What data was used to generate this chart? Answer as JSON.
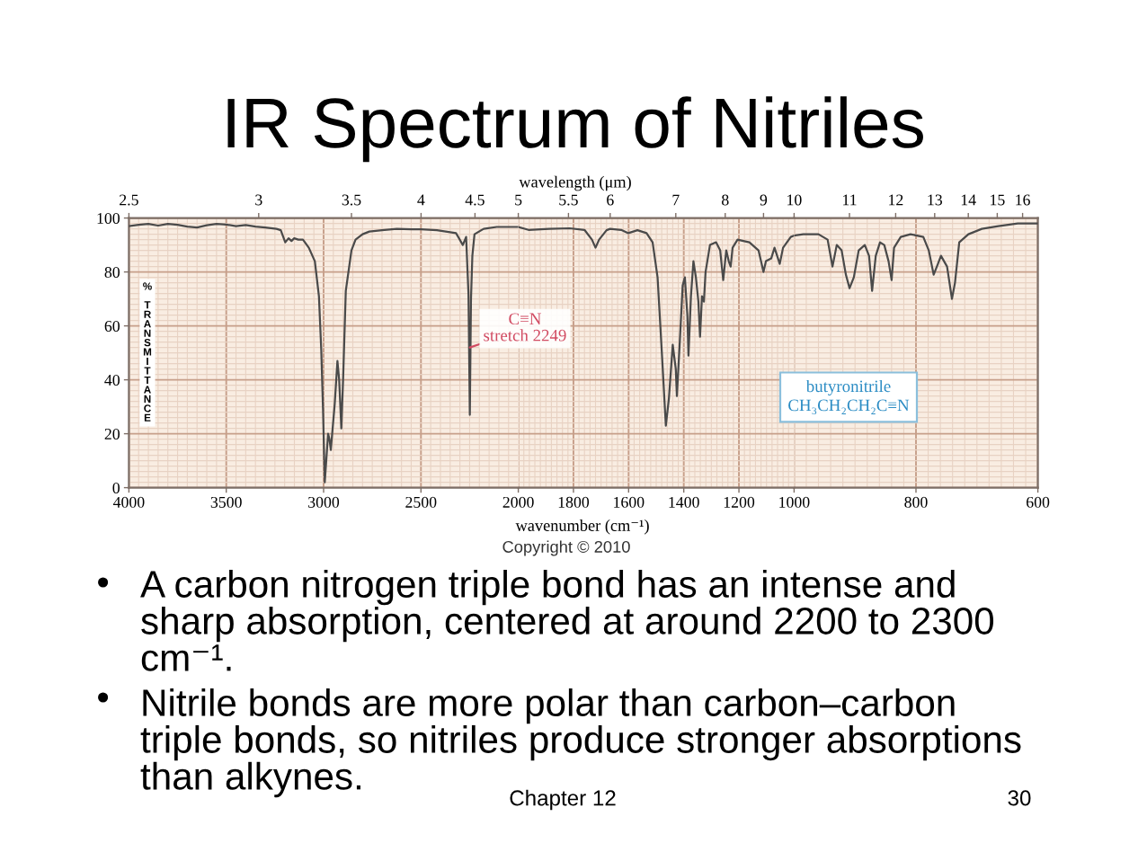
{
  "chart_data": [
    {
      "type": "line",
      "title": "IR Spectrum of Nitriles",
      "ylabel": "% TRANSMITTANCE",
      "x": [
        4000,
        3950,
        3900,
        3850,
        3800,
        3750,
        3700,
        3650,
        3600,
        3550,
        3500,
        3450,
        3400,
        3350,
        3300,
        3242,
        3220,
        3197,
        3180,
        3165,
        3151,
        3130,
        3106,
        3076,
        3045,
        3024,
        3012,
        3003,
        2994,
        2977,
        2970,
        2963,
        2943,
        2929,
        2920,
        2909,
        2900,
        2886,
        2857,
        2836,
        2800,
        2765,
        2700,
        2624,
        2550,
        2500,
        2418,
        2320,
        2285,
        2268,
        2256,
        2249,
        2243,
        2236,
        2225,
        2178,
        2111,
        2050,
        2000
      ],
      "series": [
        {
          "color": "#4a4a4a",
          "values": [
            97,
            97.5,
            97.8,
            97.2,
            97.8,
            97.5,
            96.8,
            96.5,
            97.3,
            97.8,
            97.6,
            97,
            97.4,
            96.8,
            96.5,
            96,
            95.5,
            91,
            92.5,
            91.5,
            92.5,
            92,
            92,
            89,
            84,
            71,
            51,
            29,
            2,
            20,
            18,
            14,
            31,
            47,
            40,
            22,
            40,
            73,
            88,
            92,
            94,
            95,
            95.5,
            96,
            95.8,
            95.8,
            95.5,
            94.4,
            90,
            93,
            72,
            27,
            70,
            86,
            94,
            96,
            96.7,
            96.7,
            96.7
          ]
        }
      ],
      "xlim": [
        4000,
        2000
      ],
      "xticks": [
        4000,
        3500,
        3000,
        2500
      ],
      "ylim": [
        0,
        100
      ],
      "yticks": [
        0,
        20,
        40,
        60,
        80,
        100
      ],
      "grid": true,
      "annotations": [
        "2.5",
        "3",
        "3.5",
        "4",
        "4.5",
        {
          "text": "C≡N\nstretch 2249",
          "x": 2249,
          "y": 52
        },
        "Copyright © 2010",
        "A carbon nitrogen triple bond has an intense and\nsharp absorption, centered at around 2200 to 2300\ncm⁻¹.",
        "Nitrile bonds are more polar than carbon–carbon\ntriple bonds, so nitriles produce stronger absorptions\nthan alkynes.",
        "Chapter 12",
        "30"
      ]
    },
    {
      "type": "line",
      "xlabel": "wavenumber (cm⁻¹)",
      "x": [
        2000,
        1963,
        1888,
        1814,
        1760,
        1733,
        1720,
        1707,
        1680,
        1667,
        1627,
        1601,
        1568,
        1535,
        1513,
        1495,
        1480,
        1465,
        1454,
        1440,
        1429,
        1425,
        1414,
        1404,
        1396,
        1387,
        1383,
        1374,
        1365,
        1356,
        1347,
        1341,
        1334,
        1327,
        1321,
        1305,
        1283,
        1268,
        1257,
        1246,
        1237,
        1230,
        1223,
        1205,
        1184,
        1162,
        1129,
        1111,
        1102,
        1083,
        1071,
        1052,
        1040,
        1012,
        1000
      ],
      "series": [
        {
          "color": "#4a4a4a",
          "values": [
            96.7,
            95.6,
            96,
            96.2,
            95.6,
            92,
            89,
            92,
            95.5,
            96,
            95.6,
            94.4,
            95.5,
            94.4,
            91,
            78,
            51,
            23,
            33,
            53,
            44,
            34,
            55,
            75,
            78,
            64,
            49,
            71,
            84,
            78,
            69,
            56,
            71,
            69,
            80,
            90,
            91,
            88,
            77,
            88,
            84,
            82,
            89,
            92,
            91.5,
            91,
            88,
            80,
            84,
            85,
            89,
            83,
            89,
            93,
            93.5
          ]
        }
      ],
      "xlim": [
        2000,
        1000
      ],
      "xticks": [
        2000,
        1800,
        1600,
        1400,
        1200
      ],
      "ylim": [
        0,
        100
      ],
      "yticks": [
        0,
        20,
        40,
        60,
        80,
        100
      ],
      "grid": true,
      "tick_labels": "x",
      "annotations": [
        "wavelength (μm)",
        "5",
        "5.5",
        "6",
        "7",
        "8",
        "9"
      ]
    },
    {
      "type": "line",
      "x": [
        1000,
        985,
        960,
        945,
        937,
        930,
        922,
        915,
        909,
        902,
        894,
        884,
        877,
        872,
        866,
        859,
        852,
        845,
        840,
        836,
        825,
        809,
        788,
        779,
        771,
        764,
        759,
        749,
        741,
        736,
        729,
        714,
        692,
        665,
        633,
        600
      ],
      "series": [
        {
          "color": "#4a4a4a",
          "values": [
            93.5,
            94,
            94,
            92,
            82,
            90,
            88,
            79,
            74,
            78,
            88,
            90,
            86,
            73,
            86,
            91,
            90,
            84,
            77,
            89,
            93,
            94,
            93,
            88,
            79,
            83,
            86,
            82,
            70,
            76,
            91,
            94,
            96,
            97,
            98,
            98
          ]
        }
      ],
      "xlim": [
        1000,
        600
      ],
      "xticks": [
        1000,
        800,
        600
      ],
      "ylim": [
        0,
        100
      ],
      "yticks": [
        0,
        20,
        40,
        60,
        80,
        100
      ],
      "grid": true,
      "tick_labels": "x",
      "annotations": [
        "10",
        "11",
        "12",
        "13",
        "14",
        "15",
        "16",
        "butyronitrile\nCH₃CH₂CH₂C≡N"
      ]
    }
  ]
}
